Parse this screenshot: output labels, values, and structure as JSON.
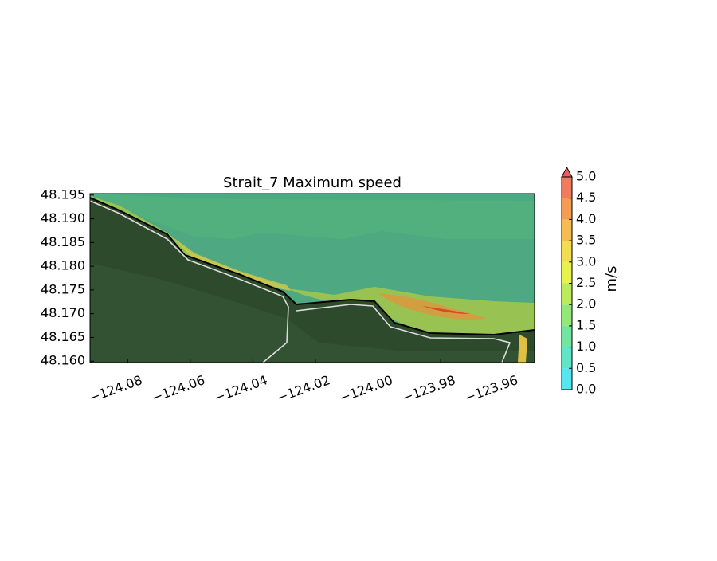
{
  "chart_data": {
    "type": "contour-map",
    "title": "Strait_7 Maximum speed",
    "xlim": [
      -124.092,
      -123.95
    ],
    "ylim": [
      48.1597,
      48.1953
    ],
    "xticks": [
      {
        "value": -124.08,
        "label": "−124.08"
      },
      {
        "value": -124.06,
        "label": "−124.06"
      },
      {
        "value": -124.04,
        "label": "−124.04"
      },
      {
        "value": -124.02,
        "label": "−124.02"
      },
      {
        "value": -124.0,
        "label": "−124.00"
      },
      {
        "value": -123.98,
        "label": "−123.98"
      },
      {
        "value": -123.96,
        "label": "−123.96"
      }
    ],
    "yticks": [
      {
        "value": 48.16,
        "label": "48.160"
      },
      48.165,
      {
        "value": 48.17,
        "label": "48.170"
      },
      48.175,
      {
        "value": 48.18,
        "label": "48.180"
      },
      48.185,
      {
        "value": 48.19,
        "label": "48.190"
      },
      48.195
    ],
    "colorbar": {
      "label": "m/s",
      "lim": [
        0,
        5
      ],
      "ticks": [
        {
          "value": 0,
          "label": "0.0"
        },
        0.5,
        {
          "value": 1,
          "label": "1.0"
        },
        1.5,
        {
          "value": 2,
          "label": "2.0"
        },
        2.5,
        {
          "value": 3,
          "label": "3.0"
        },
        3.5,
        {
          "value": 4,
          "label": "4.0"
        },
        4.5,
        {
          "value": 5,
          "label": "5.0"
        }
      ],
      "colors": [
        "#55e6f0",
        "#5fe6c6",
        "#72e6a0",
        "#94e878",
        "#bcec5e",
        "#e8f24c",
        "#f4dc50",
        "#f4bc52",
        "#f29c54",
        "#ef7c5c"
      ],
      "extend_color": "#ec5e60"
    }
  }
}
